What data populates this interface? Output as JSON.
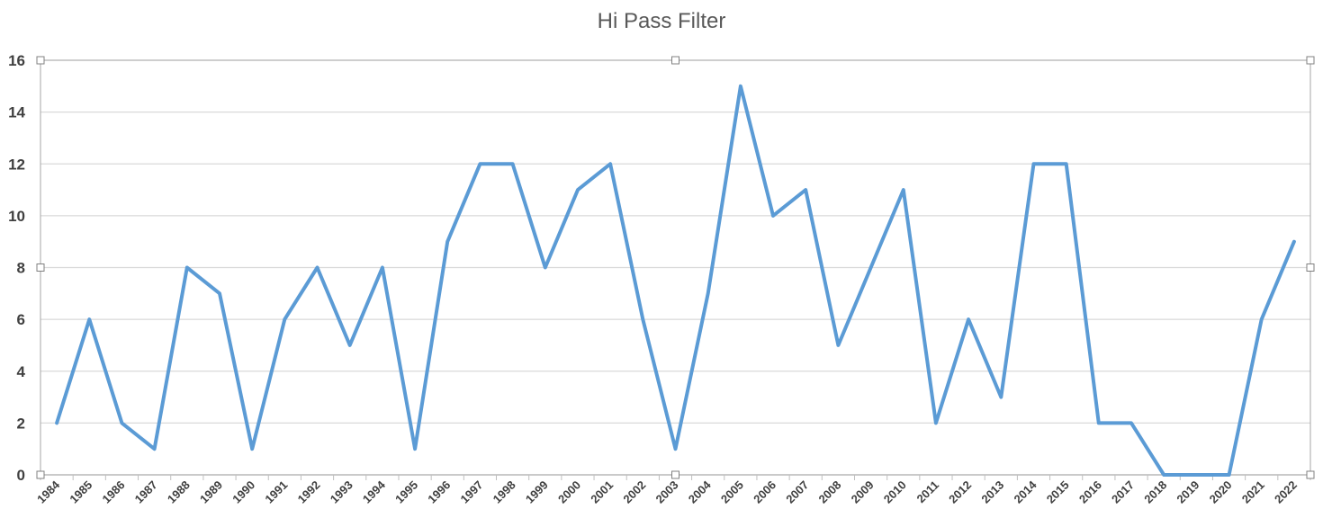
{
  "chart_data": {
    "type": "line",
    "title": "Hi Pass Filter",
    "xlabel": "",
    "ylabel": "",
    "ylim": [
      0,
      16
    ],
    "yticks": [
      0,
      2,
      4,
      6,
      8,
      10,
      12,
      14,
      16
    ],
    "grid": true,
    "legend": "none",
    "categories": [
      "1984",
      "1985",
      "1986",
      "1987",
      "1988",
      "1989",
      "1990",
      "1991",
      "1992",
      "1993",
      "1994",
      "1995",
      "1996",
      "1997",
      "1998",
      "1999",
      "2000",
      "2001",
      "2002",
      "2003",
      "2004",
      "2005",
      "2006",
      "2007",
      "2008",
      "2009",
      "2010",
      "2011",
      "2012",
      "2013",
      "2014",
      "2015",
      "2016",
      "2017",
      "2018",
      "2019",
      "2020",
      "2021",
      "2022"
    ],
    "series": [
      {
        "values": [
          2,
          6,
          2,
          1,
          8,
          7,
          1,
          6,
          8,
          5,
          8,
          1,
          9,
          12,
          12,
          8,
          11,
          12,
          6,
          1,
          7,
          15,
          10,
          11,
          5,
          8,
          11,
          2,
          6,
          3,
          12,
          12,
          2,
          2,
          0,
          0,
          0,
          6,
          9
        ],
        "color": "#5b9bd5"
      }
    ]
  }
}
